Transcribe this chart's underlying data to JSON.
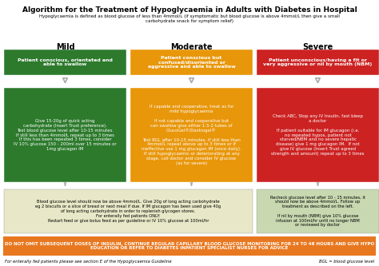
{
  "title": "Algorithm for the Treatment of Hypoglycaemia in Adults with Diabetes in Hospital",
  "subtitle": "Hypoglycaemia is defined as blood glucose of less than 4mmol/L (if symptomatic but blood glucose is above 4mmol/L then give a small\ncarbohydrate snack for symptom relief)",
  "columns": [
    "Mild",
    "Moderate",
    "Severe"
  ],
  "box1_colors": [
    "#2d7a2d",
    "#e8960a",
    "#cc2222"
  ],
  "box1_texts": [
    "Patient conscious, orientated and\nable to swallow",
    "Patient conscious but\nconfused/disoriented or\naggressive and able to swallow",
    "Patient unconscious/having a fit or\nvery aggressive or nil by mouth (NBM)"
  ],
  "box2_colors": [
    "#2d7a2d",
    "#e8960a",
    "#cc2222"
  ],
  "box2_texts": [
    "Give 15-20g of quick acting\ncarbohydrate (Insert Trust preference).\nTest blood glucose level after 10-15 minutes.\nIf still less than 4mmol/L repeat up to 3 times\nIf this has been repeated 3 times, consider\nIV 10% glucose 150 - 200ml over 15 minutes or\n1mg glucagon IM",
    "If capable and cooperative, treat as for\nmild hypoglycaemia\n\nIf not capable and cooperative but\ncan swallow give either 1.5-2 tubes of\nGlucoGel®/Dextrogel®\n\nTest BGL after 10-15 minutes. If still less than\n4mmol/L repeat above up to 3 times or if\nineffective use 1 mg glucagon IM (once daily).\nIf still hypoglycaemic or deteriorating at any\nstage, call doctor and consider IV glucose\n(as for severe)",
    "Check ABC, Stop any IV Insulin, fast bleep\na doctor\n\nIf patient suitable for IM glucagon (i.e.\nno repeated hypos, patient not\nstarved/NBM and no severe hepatic\ndisease) give 1 mg glucagon IM.  If not\ngive IV glucose (Insert Trust agreed\nstrength and amount) repeat up to 3 times"
  ],
  "box3_left_text": "Blood glucose level should now be above 4mmol/L. Give 20g of long acting carbohydrate\neg 2 biscuits or a slice of bread or next meal if due. If IM glucagon has been used give 40g\nof long acting carbohydrate in order to replenish glycogen stores.\nFor enterally fed patients ONLY:\nRestart feed or give bolus feed as per guideline or IV 10% glucose at 100ml/hr",
  "box3_right_text": "Recheck glucose level after 10 - 15 minutes, it\nshould now be above 4mmol/L. Follow up\ntreatment as described on the left.\n\nIf nil by mouth (NBM) give 10% glucose\ninfusion at 100ml/hr until no longer NBM\nor reviewed by doctor",
  "box3_left_color": "#e8e8c8",
  "box3_right_color": "#c8d8b0",
  "bottom_text": "DO NOT OMIT SUBSEQUENT DOSES OF INSULIN, CONTINUE REGULAR CAPILLARY BLOOD GLUCOSE MONITORING FOR 24 TO 48 HOURS AND GIVE HYPO\nEDUCATION OR REFER TO DIABETES INPATIENT SPECIALIST NURSES FOR ADVICE",
  "bottom_color": "#e87820",
  "footer_left": "For enterally fed patients please see section E of the Hypoglycaemia Guideline",
  "footer_right": "BGL = blood glucose level",
  "bg_color": "#ffffff"
}
